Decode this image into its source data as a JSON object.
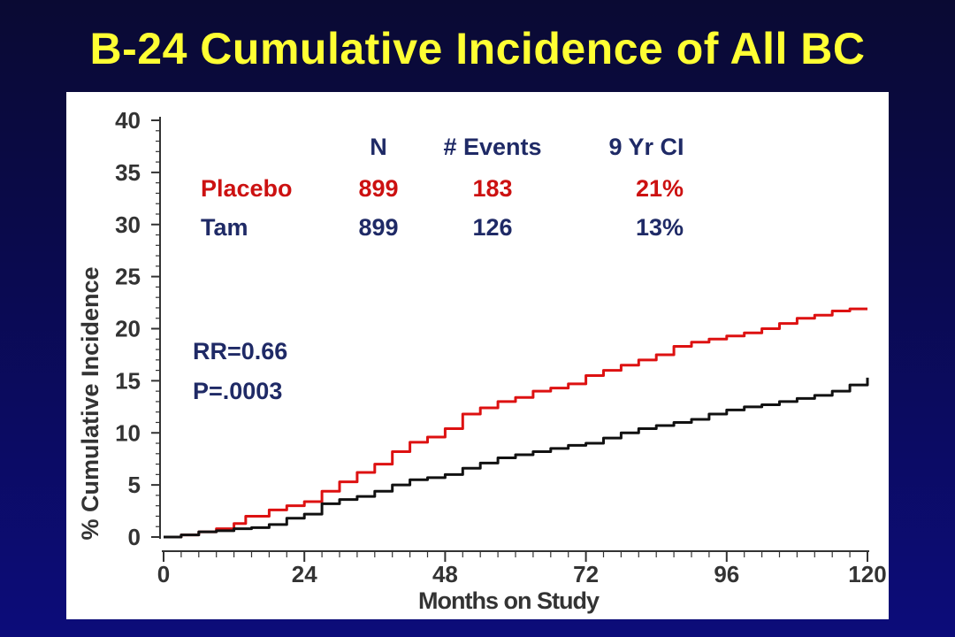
{
  "title": "B-24 Cumulative Incidence of All BC",
  "colors": {
    "background": "#0a0a4a",
    "title": "#ffff33",
    "placebo": "#cc1111",
    "tam": "#1a1a1a",
    "text_blue": "#1f2a66",
    "axis": "#333333"
  },
  "table": {
    "headers": [
      "N",
      "# Events",
      "9 Yr CI"
    ],
    "rows": [
      {
        "label": "Placebo",
        "n": "899",
        "events": "183",
        "ci": "21%",
        "color": "#cc1111"
      },
      {
        "label": "Tam",
        "n": "899",
        "events": "126",
        "ci": "13%",
        "color": "#1f2a66"
      }
    ]
  },
  "stats": {
    "rr": "RR=0.66",
    "p": "P=.0003"
  },
  "chart_data": {
    "type": "line",
    "xlabel": "Months on Study",
    "ylabel": "% Cumulative Incidence",
    "xlim": [
      0,
      120
    ],
    "ylim": [
      0,
      40
    ],
    "xticks": [
      0,
      24,
      48,
      72,
      96,
      120
    ],
    "yticks": [
      0,
      5,
      10,
      15,
      20,
      25,
      30,
      35,
      40
    ],
    "grid": false,
    "series": [
      {
        "name": "Placebo",
        "color": "#dd1111",
        "x": [
          0,
          3,
          6,
          9,
          12,
          14,
          18,
          21,
          24,
          27,
          30,
          33,
          36,
          39,
          42,
          45,
          48,
          51,
          54,
          57,
          60,
          63,
          66,
          69,
          72,
          75,
          78,
          81,
          84,
          87,
          90,
          93,
          96,
          99,
          102,
          105,
          108,
          111,
          114,
          117,
          120
        ],
        "y": [
          0,
          0.2,
          0.5,
          0.8,
          1.3,
          2.0,
          2.6,
          3.0,
          3.4,
          4.4,
          5.3,
          6.2,
          7.0,
          8.2,
          9.1,
          9.6,
          10.4,
          11.8,
          12.4,
          13.0,
          13.4,
          14.0,
          14.3,
          14.7,
          15.5,
          16.0,
          16.5,
          17.0,
          17.5,
          18.3,
          18.7,
          19.0,
          19.3,
          19.6,
          20.0,
          20.5,
          21.0,
          21.3,
          21.7,
          21.9,
          21.9
        ]
      },
      {
        "name": "Tam",
        "color": "#111111",
        "x": [
          0,
          3,
          6,
          9,
          12,
          15,
          18,
          21,
          24,
          27,
          30,
          33,
          36,
          39,
          42,
          45,
          48,
          51,
          54,
          57,
          60,
          63,
          66,
          69,
          72,
          75,
          78,
          81,
          84,
          87,
          90,
          93,
          96,
          99,
          102,
          105,
          108,
          111,
          114,
          117,
          120
        ],
        "y": [
          0,
          0.2,
          0.5,
          0.6,
          0.8,
          0.9,
          1.2,
          1.8,
          2.2,
          3.2,
          3.6,
          3.9,
          4.4,
          5.0,
          5.5,
          5.7,
          6.0,
          6.6,
          7.1,
          7.6,
          7.9,
          8.2,
          8.5,
          8.8,
          9.0,
          9.5,
          10.0,
          10.4,
          10.7,
          11.0,
          11.3,
          11.8,
          12.2,
          12.5,
          12.7,
          13.0,
          13.3,
          13.6,
          14.0,
          14.6,
          15.3
        ]
      }
    ]
  }
}
